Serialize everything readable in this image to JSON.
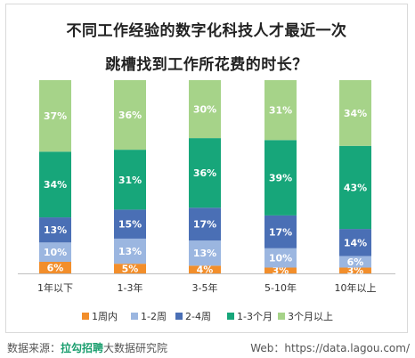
{
  "title_line1": "不同工作经验的数字化科技人才最近一次",
  "title_line2": "跳槽找到工作所花费的时长？",
  "footer": {
    "source_label": "数据来源：",
    "source_brand": "拉勾招聘",
    "source_rest": "大数据研究院",
    "web": "Web：https://data.lagou.com/"
  },
  "chart_data": {
    "type": "bar",
    "stacked": true,
    "percent": true,
    "categories": [
      "1年以下",
      "1-3年",
      "3-5年",
      "5-10年",
      "10年以上"
    ],
    "series": [
      {
        "name": "1周内",
        "color": "#f28e2b",
        "values": [
          6,
          5,
          4,
          3,
          3
        ]
      },
      {
        "name": "1-2周",
        "color": "#9bb6e0",
        "values": [
          10,
          13,
          13,
          10,
          6
        ]
      },
      {
        "name": "2-4周",
        "color": "#4a6fb5",
        "values": [
          13,
          15,
          17,
          17,
          14
        ]
      },
      {
        "name": "1-3个月",
        "color": "#17a67a",
        "values": [
          34,
          31,
          36,
          39,
          43
        ]
      },
      {
        "name": "3个月以上",
        "color": "#a6d389",
        "values": [
          37,
          36,
          30,
          31,
          34
        ]
      }
    ],
    "ylim": [
      0,
      100
    ],
    "grid": false,
    "legend_position": "bottom"
  }
}
